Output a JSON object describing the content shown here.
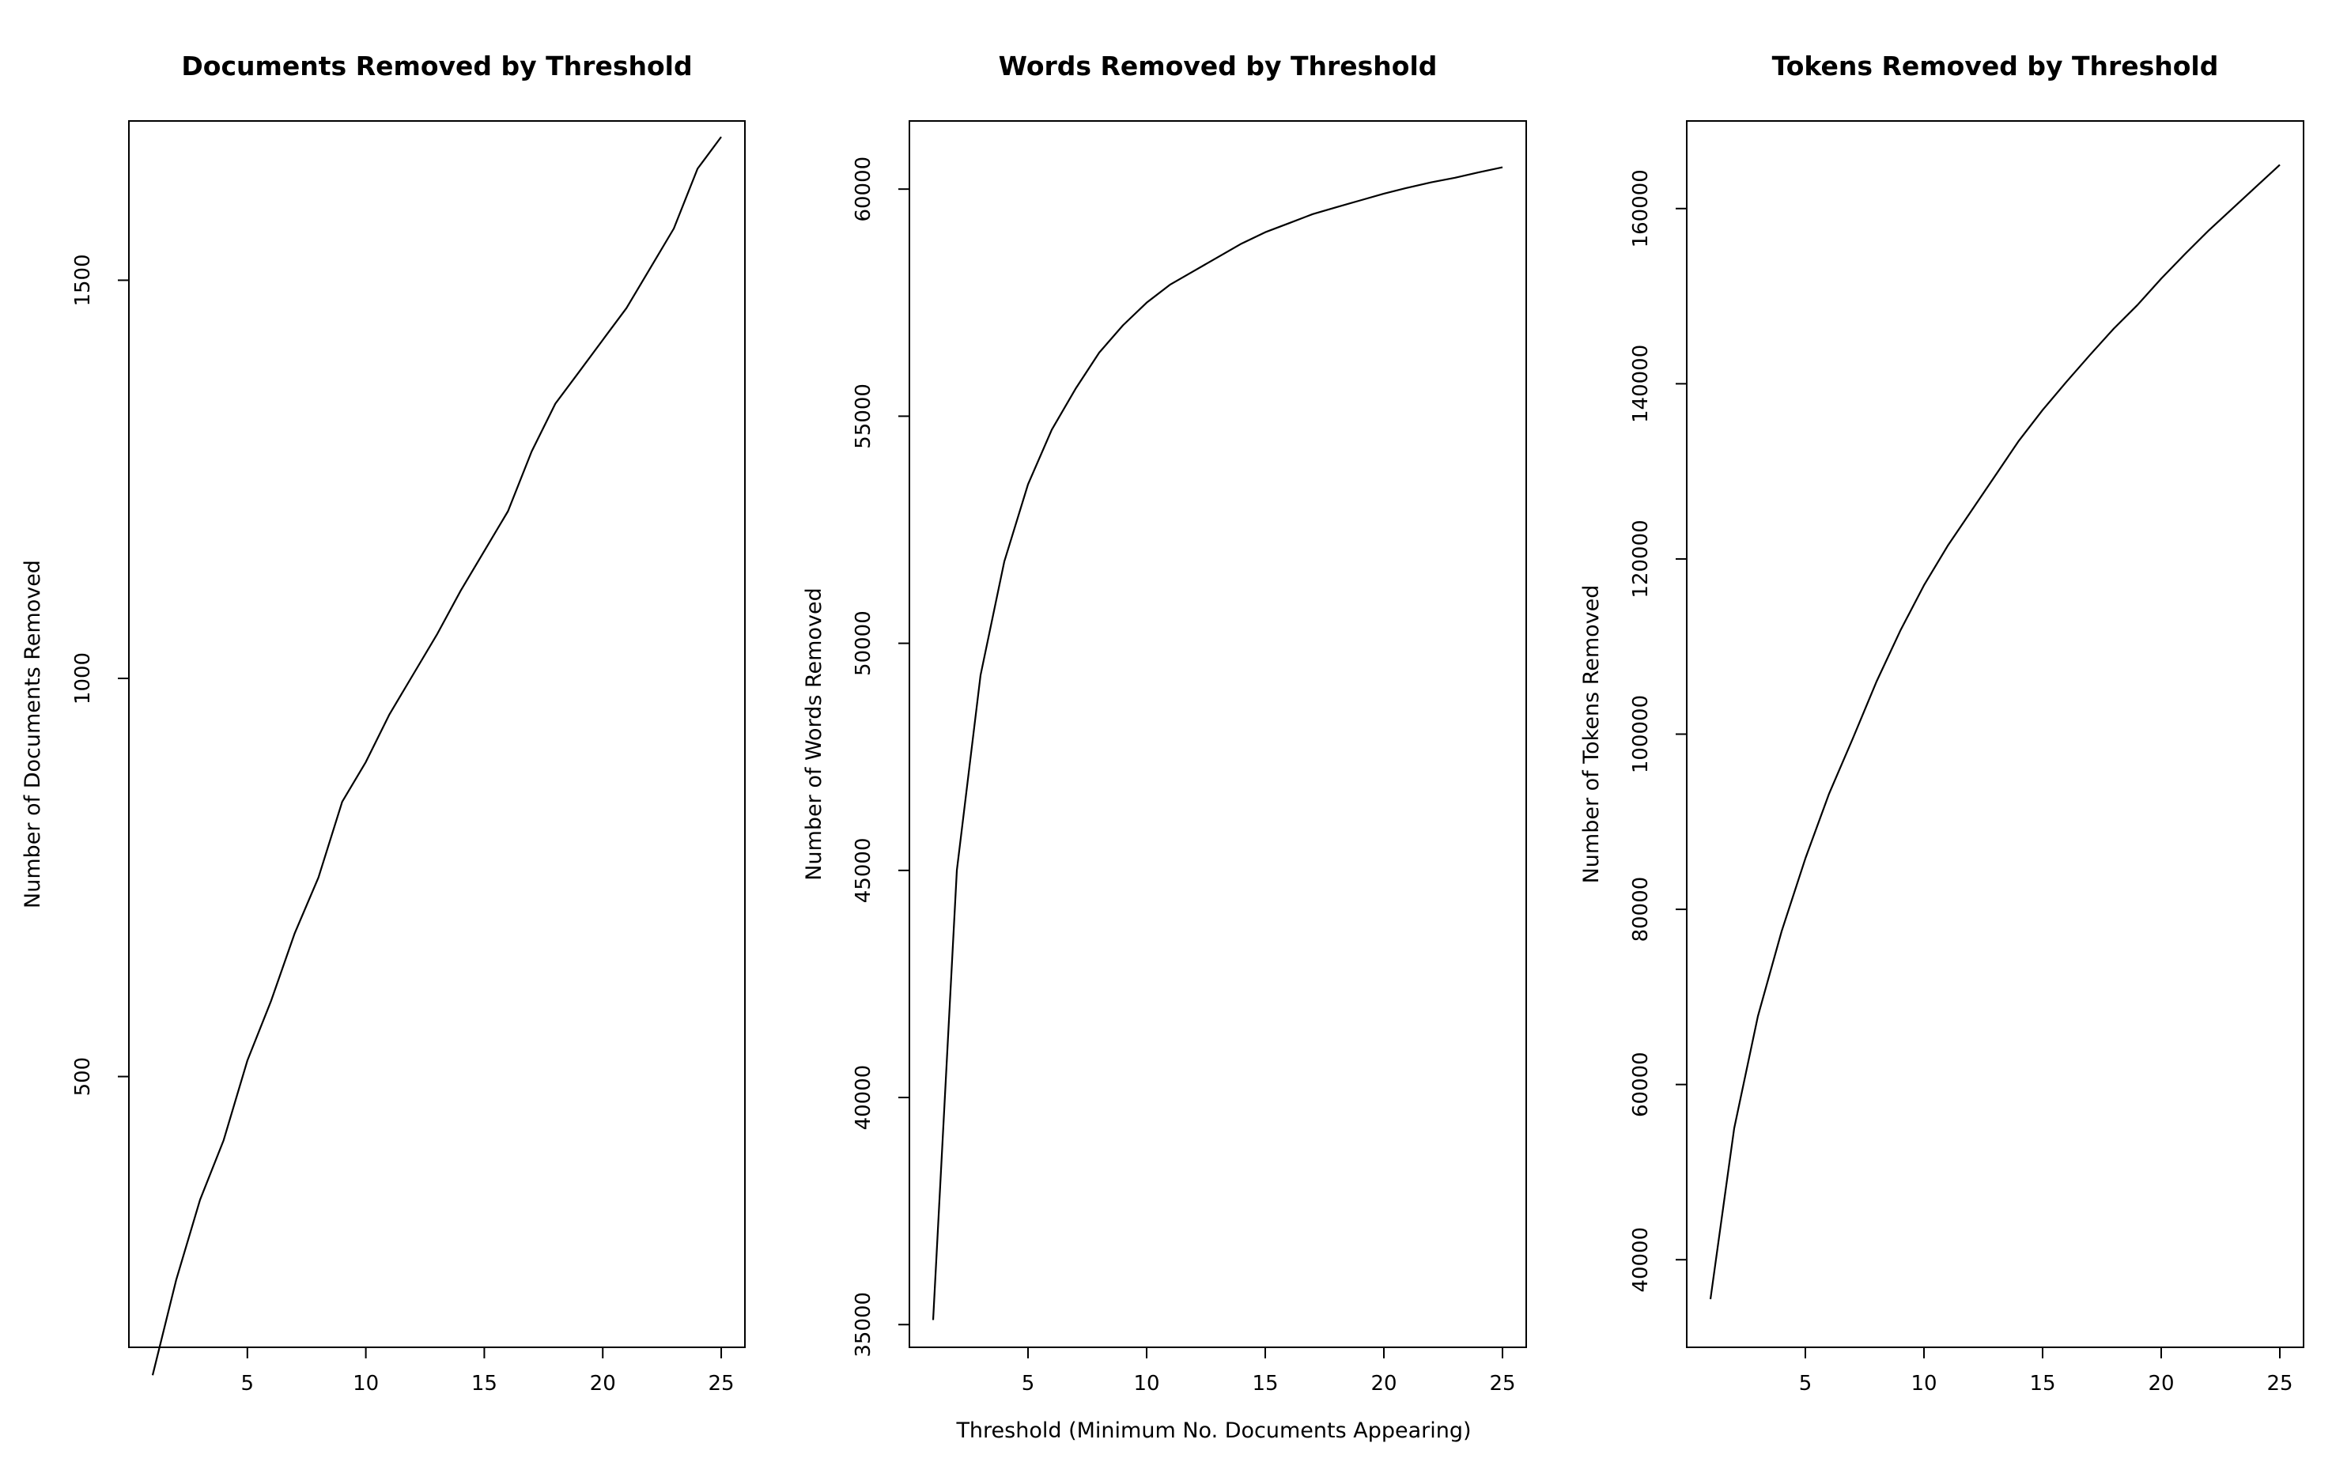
{
  "figure": {
    "xlabel": "Threshold (Minimum No. Documents Appearing)"
  },
  "chart_data": [
    {
      "type": "line",
      "title": "Documents Removed by Threshold",
      "xlabel": "Threshold (Minimum No. Documents Appearing)",
      "ylabel": "Number of Documents Removed",
      "xlim": [
        0,
        26
      ],
      "ylim": [
        160,
        1700
      ],
      "xticks": [
        5,
        10,
        15,
        20,
        25
      ],
      "yticks": [
        500,
        1000,
        1500
      ],
      "grid": false,
      "series": [
        {
          "x": [
            1,
            2,
            3,
            4,
            5,
            6,
            7,
            8,
            9,
            10,
            11,
            12,
            13,
            14,
            15,
            16,
            17,
            18,
            19,
            20,
            21,
            22,
            23,
            24,
            25
          ],
          "y": [
            125,
            245,
            345,
            420,
            520,
            595,
            680,
            750,
            845,
            895,
            955,
            1005,
            1055,
            1110,
            1160,
            1210,
            1285,
            1345,
            1385,
            1425,
            1465,
            1515,
            1565,
            1640,
            1680
          ]
        }
      ]
    },
    {
      "type": "line",
      "title": "Words Removed by Threshold",
      "xlabel": "Threshold (Minimum No. Documents Appearing)",
      "ylabel": "Number of Words Removed",
      "xlim": [
        0,
        26
      ],
      "ylim": [
        34500,
        61500
      ],
      "xticks": [
        5,
        10,
        15,
        20,
        25
      ],
      "yticks": [
        35000,
        40000,
        45000,
        50000,
        55000,
        60000
      ],
      "grid": false,
      "series": [
        {
          "x": [
            1,
            2,
            3,
            4,
            5,
            6,
            7,
            8,
            9,
            10,
            11,
            12,
            13,
            14,
            15,
            16,
            17,
            18,
            19,
            20,
            21,
            22,
            23,
            24,
            25
          ],
          "y": [
            35100,
            45000,
            49300,
            51800,
            53500,
            54700,
            55600,
            56400,
            57000,
            57500,
            57900,
            58200,
            58500,
            58800,
            59050,
            59250,
            59450,
            59600,
            59750,
            59900,
            60030,
            60150,
            60250,
            60370,
            60480
          ]
        }
      ]
    },
    {
      "type": "line",
      "title": "Tokens Removed by Threshold",
      "xlabel": "Threshold (Minimum No. Documents Appearing)",
      "ylabel": "Number of Tokens Removed",
      "xlim": [
        0,
        26
      ],
      "ylim": [
        30000,
        170000
      ],
      "xticks": [
        5,
        10,
        15,
        20,
        25
      ],
      "yticks": [
        40000,
        60000,
        80000,
        100000,
        120000,
        140000,
        160000
      ],
      "grid": false,
      "series": [
        {
          "x": [
            1,
            2,
            3,
            4,
            5,
            6,
            7,
            8,
            9,
            10,
            11,
            12,
            13,
            14,
            15,
            16,
            17,
            18,
            19,
            20,
            21,
            22,
            23,
            24,
            25
          ],
          "y": [
            35500,
            55000,
            67800,
            77500,
            85800,
            93200,
            99500,
            106000,
            111800,
            117000,
            121500,
            125500,
            129500,
            133500,
            137000,
            140200,
            143300,
            146300,
            149000,
            152000,
            154800,
            157500,
            160000,
            162500,
            165000
          ]
        }
      ]
    }
  ]
}
